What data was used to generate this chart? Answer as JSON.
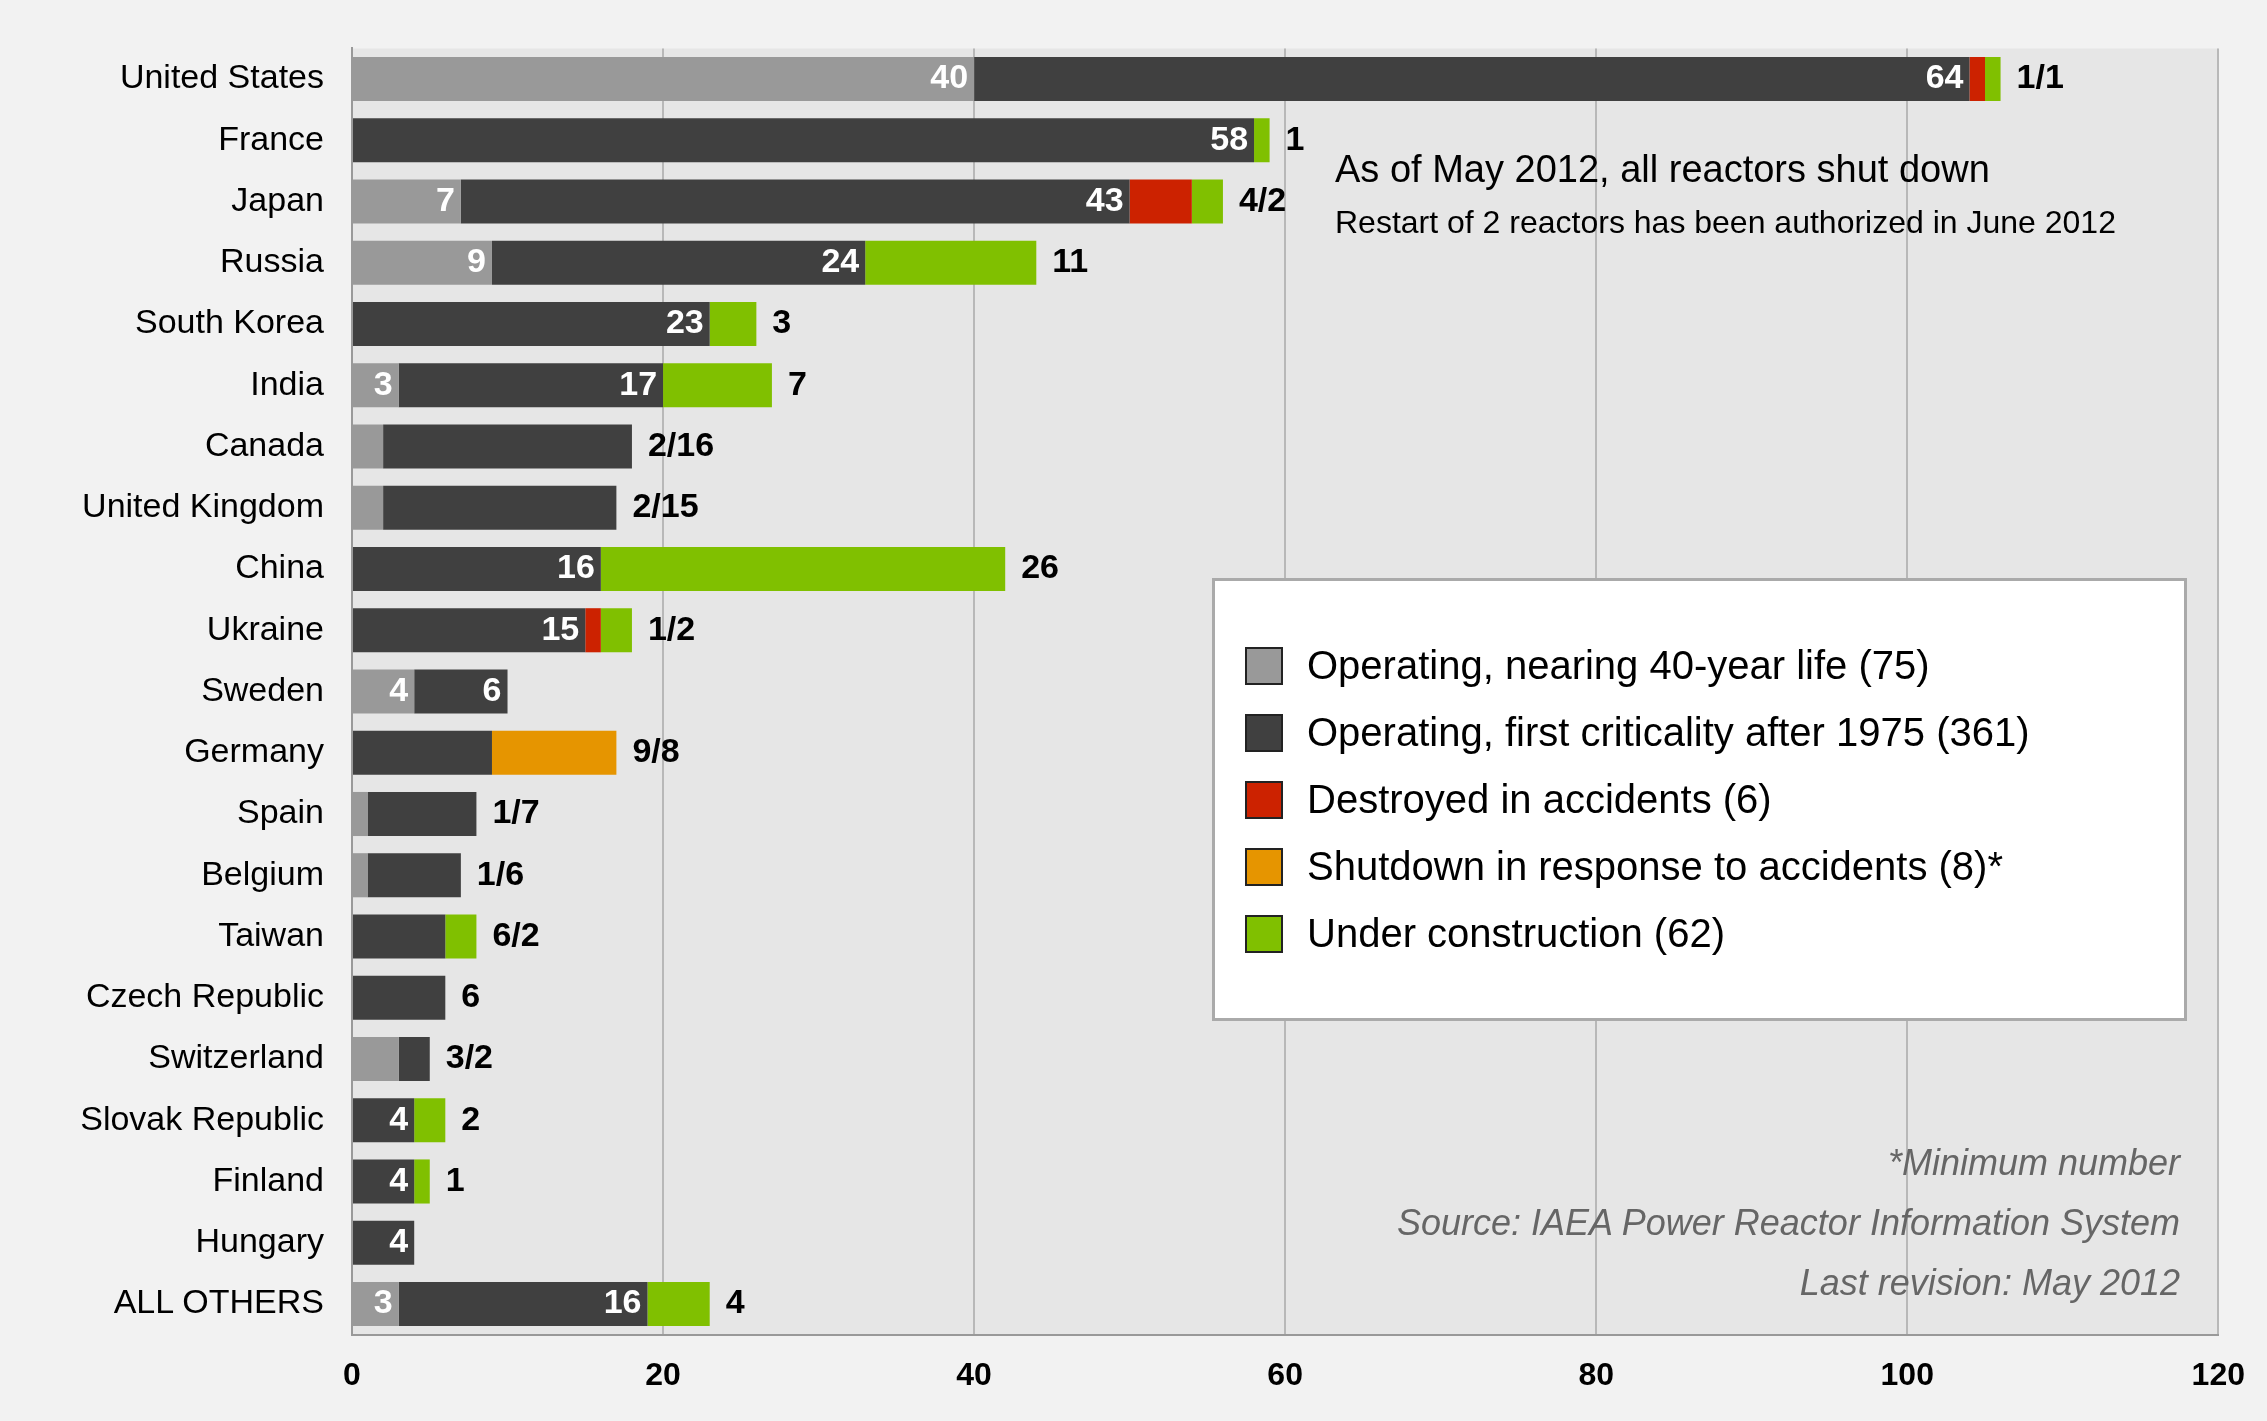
{
  "chart_data": {
    "type": "bar",
    "orientation": "horizontal",
    "stacked": true,
    "categories": [
      "United States",
      "France",
      "Japan",
      "Russia",
      "South Korea",
      "India",
      "Canada",
      "United Kingdom",
      "China",
      "Ukraine",
      "Sweden",
      "Germany",
      "Spain",
      "Belgium",
      "Taiwan",
      "Czech Republic",
      "Switzerland",
      "Slovak Republic",
      "Finland",
      "Hungary",
      "ALL OTHERS"
    ],
    "series": [
      {
        "name": "Operating, nearing 40-year life (75)",
        "color": "#999999",
        "values": [
          40,
          null,
          7,
          9,
          null,
          3,
          2,
          2,
          null,
          null,
          4,
          null,
          1,
          1,
          null,
          null,
          3,
          null,
          null,
          null,
          3
        ],
        "value_labels": [
          "40",
          null,
          "7",
          "9",
          null,
          "3",
          null,
          null,
          null,
          null,
          "4",
          null,
          null,
          null,
          null,
          null,
          null,
          null,
          null,
          null,
          "3"
        ]
      },
      {
        "name": "Operating, first criticality after 1975 (361)",
        "color": "#404040",
        "values": [
          64,
          58,
          43,
          24,
          23,
          17,
          16,
          15,
          16,
          15,
          6,
          9,
          7,
          6,
          6,
          6,
          2,
          4,
          4,
          4,
          16
        ],
        "value_labels": [
          "64",
          "58",
          "43",
          "24",
          "23",
          "17",
          null,
          null,
          "16",
          "15",
          "6",
          null,
          null,
          null,
          null,
          null,
          null,
          "4",
          "4",
          "4",
          "16"
        ]
      },
      {
        "name": "Destroyed in accidents (6)",
        "color": "#cc2200",
        "values": [
          1,
          null,
          4,
          null,
          null,
          null,
          null,
          null,
          null,
          1,
          null,
          null,
          null,
          null,
          null,
          null,
          null,
          null,
          null,
          null,
          null
        ]
      },
      {
        "name": "Shutdown in response to accidents (8)*",
        "color": "#e69500",
        "values": [
          null,
          null,
          null,
          null,
          null,
          null,
          null,
          null,
          null,
          null,
          null,
          8,
          null,
          null,
          null,
          null,
          null,
          null,
          null,
          null,
          null
        ]
      },
      {
        "name": "Under construction (62)",
        "color": "#80c000",
        "values": [
          1,
          1,
          2,
          11,
          3,
          7,
          null,
          null,
          26,
          2,
          null,
          null,
          null,
          null,
          2,
          null,
          null,
          2,
          1,
          null,
          4
        ]
      }
    ],
    "xlim": [
      0,
      120
    ],
    "xticks": [
      0,
      20,
      40,
      60,
      80,
      100,
      120
    ],
    "grid": "x",
    "legend": "right",
    "annotations": [
      {
        "text": "1/1",
        "x": 106,
        "y": "United States"
      },
      {
        "text": "1",
        "x": 59,
        "y": "France"
      },
      {
        "text": "4/2",
        "x": 56,
        "y": "Japan"
      },
      {
        "text": "11",
        "x": 44,
        "y": "Russia"
      },
      {
        "text": "3",
        "x": 26,
        "y": "South Korea"
      },
      {
        "text": "7",
        "x": 27,
        "y": "India"
      },
      {
        "text": "2/16",
        "x": 18,
        "y": "Canada"
      },
      {
        "text": "2/15",
        "x": 17,
        "y": "United Kingdom"
      },
      {
        "text": "26",
        "x": 42,
        "y": "China"
      },
      {
        "text": "1/2",
        "x": 18,
        "y": "Ukraine"
      },
      {
        "text": "9/8",
        "x": 17,
        "y": "Germany"
      },
      {
        "text": "1/7",
        "x": 8,
        "y": "Spain"
      },
      {
        "text": "1/6",
        "x": 7,
        "y": "Belgium"
      },
      {
        "text": "6/2",
        "x": 8,
        "y": "Taiwan"
      },
      {
        "text": "6",
        "x": 6,
        "y": "Czech Republic"
      },
      {
        "text": "3/2",
        "x": 5,
        "y": "Switzerland"
      },
      {
        "text": "2",
        "x": 6,
        "y": "Slovak Republic"
      },
      {
        "text": "1",
        "x": 5,
        "y": "Finland"
      },
      {
        "text": "4",
        "x": 23,
        "y": "ALL OTHERS"
      },
      "As of May 2012, all reactors shut down",
      "Restart of 2 reactors has been authorized in June 2012",
      "*Minimum number",
      "Source: IAEA Power Reactor Information System",
      "Last revision: May 2012"
    ]
  }
}
